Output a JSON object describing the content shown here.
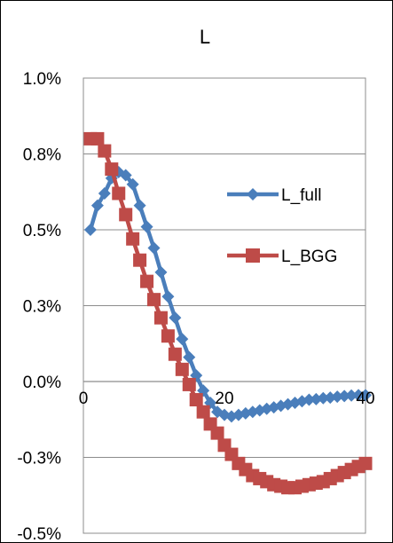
{
  "chart_data": {
    "type": "line",
    "title": "L",
    "xlabel": "",
    "ylabel": "",
    "xlim": [
      0,
      40
    ],
    "ylim": [
      -0.5,
      1.0
    ],
    "x_ticks": [
      0,
      20,
      40
    ],
    "x_tick_labels": [
      "0",
      "20",
      "40"
    ],
    "y_ticks": [
      1.0,
      0.75,
      0.5,
      0.25,
      0.0,
      -0.25,
      -0.5
    ],
    "y_tick_labels": [
      "1.0%",
      "0.8%",
      "0.5%",
      "0.3%",
      "0.0%",
      "-0.3%",
      "-0.5%"
    ],
    "grid": "horizontal",
    "legend_position": "right",
    "x": [
      1,
      2,
      3,
      4,
      5,
      6,
      7,
      8,
      9,
      10,
      11,
      12,
      13,
      14,
      15,
      16,
      17,
      18,
      19,
      20,
      21,
      22,
      23,
      24,
      25,
      26,
      27,
      28,
      29,
      30,
      31,
      32,
      33,
      34,
      35,
      36,
      37,
      38,
      39,
      40
    ],
    "series": [
      {
        "name": "L_full",
        "color": "#4a7ebb",
        "marker": "diamond",
        "values": [
          0.5,
          0.58,
          0.62,
          0.67,
          0.69,
          0.68,
          0.65,
          0.58,
          0.51,
          0.44,
          0.36,
          0.28,
          0.21,
          0.14,
          0.08,
          0.02,
          -0.03,
          -0.07,
          -0.1,
          -0.11,
          -0.115,
          -0.11,
          -0.105,
          -0.1,
          -0.095,
          -0.09,
          -0.085,
          -0.08,
          -0.075,
          -0.07,
          -0.065,
          -0.06,
          -0.058,
          -0.055,
          -0.053,
          -0.05,
          -0.048,
          -0.046,
          -0.045,
          -0.045
        ]
      },
      {
        "name": "L_BGG",
        "color": "#be4b48",
        "marker": "square",
        "values": [
          0.8,
          0.8,
          0.76,
          0.7,
          0.62,
          0.55,
          0.47,
          0.4,
          0.33,
          0.27,
          0.21,
          0.15,
          0.09,
          0.04,
          -0.01,
          -0.06,
          -0.1,
          -0.14,
          -0.17,
          -0.21,
          -0.24,
          -0.27,
          -0.29,
          -0.31,
          -0.32,
          -0.33,
          -0.34,
          -0.345,
          -0.35,
          -0.35,
          -0.345,
          -0.34,
          -0.335,
          -0.33,
          -0.32,
          -0.31,
          -0.3,
          -0.29,
          -0.28,
          -0.27
        ]
      }
    ]
  }
}
